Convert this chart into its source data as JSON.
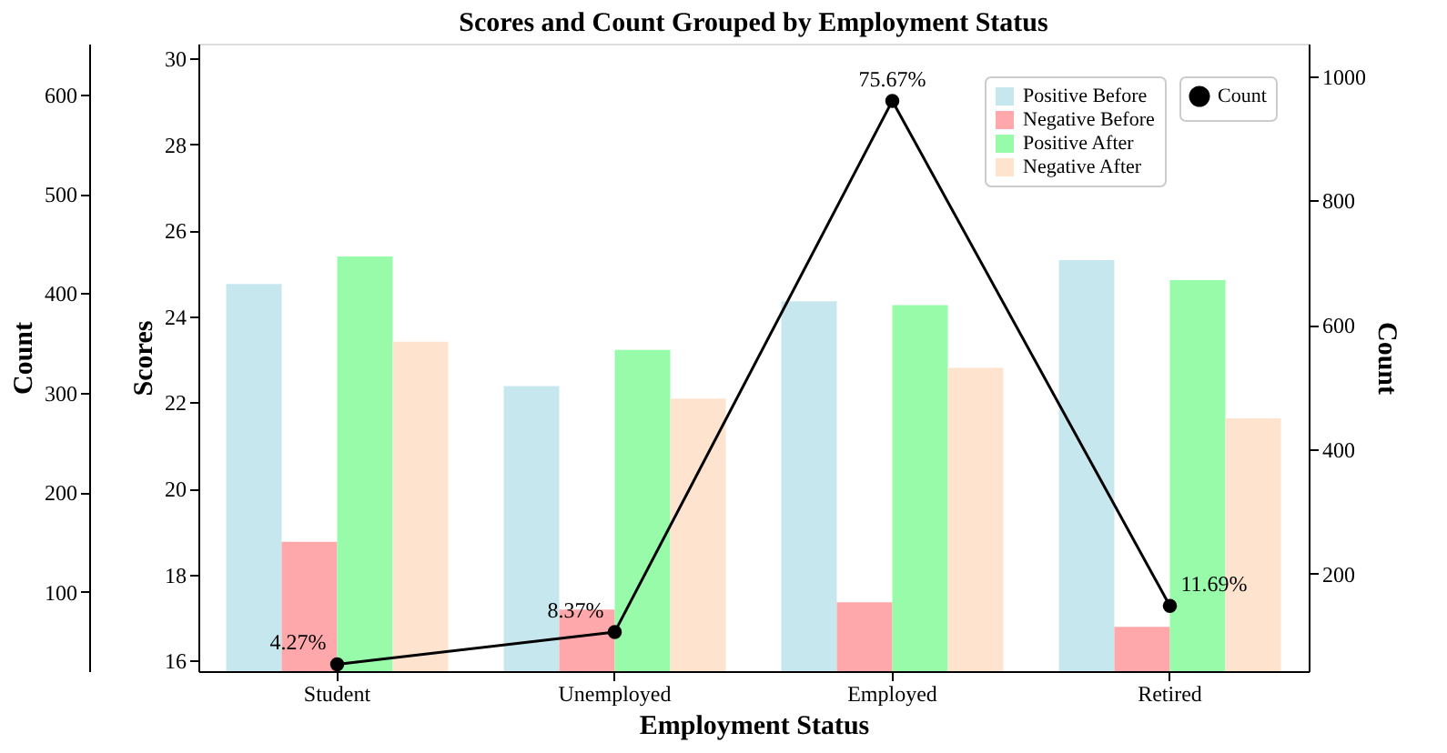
{
  "chart_data": {
    "type": "bar",
    "title": "Scores and Count Grouped by Employment Status",
    "xlabel": "Employment Status",
    "ylabel": "Scores",
    "y2label": "Count",
    "y3label": "Count",
    "categories": [
      "Student",
      "Unemployed",
      "Employed",
      "Retired"
    ],
    "series": [
      {
        "name": "Positive Before",
        "color": "#c7e7ef",
        "values": [
          24.75,
          22.38,
          24.35,
          25.31
        ]
      },
      {
        "name": "Negative Before",
        "color": "#ffa8ab",
        "values": [
          18.76,
          17.18,
          17.35,
          16.78
        ]
      },
      {
        "name": "Positive After",
        "color": "#98fbaa",
        "values": [
          25.39,
          23.22,
          24.26,
          24.84
        ]
      },
      {
        "name": "Negative After",
        "color": "#fee4cf",
        "values": [
          23.41,
          22.09,
          22.8,
          21.63
        ]
      },
      {
        "name": "Count",
        "type": "line",
        "axis": "y2",
        "color": "#000000",
        "marker": "circle",
        "line_style": "solid",
        "values": [
          54,
          106,
          960,
          148
        ]
      }
    ],
    "annotations": [
      "4.27%",
      "8.37%",
      "75.67%",
      "11.69%"
    ],
    "ylim": [
      15.75,
      30.34
    ],
    "yticks": [
      16,
      18,
      20,
      22,
      24,
      26,
      28,
      30
    ],
    "y2lim": [
      43,
      1052
    ],
    "y2ticks": [
      200,
      400,
      600,
      800,
      1000
    ],
    "y3lim": [
      20,
      651
    ],
    "y3ticks": [
      100,
      200,
      300,
      400,
      500,
      600
    ],
    "grid": false,
    "legend": "top right"
  }
}
